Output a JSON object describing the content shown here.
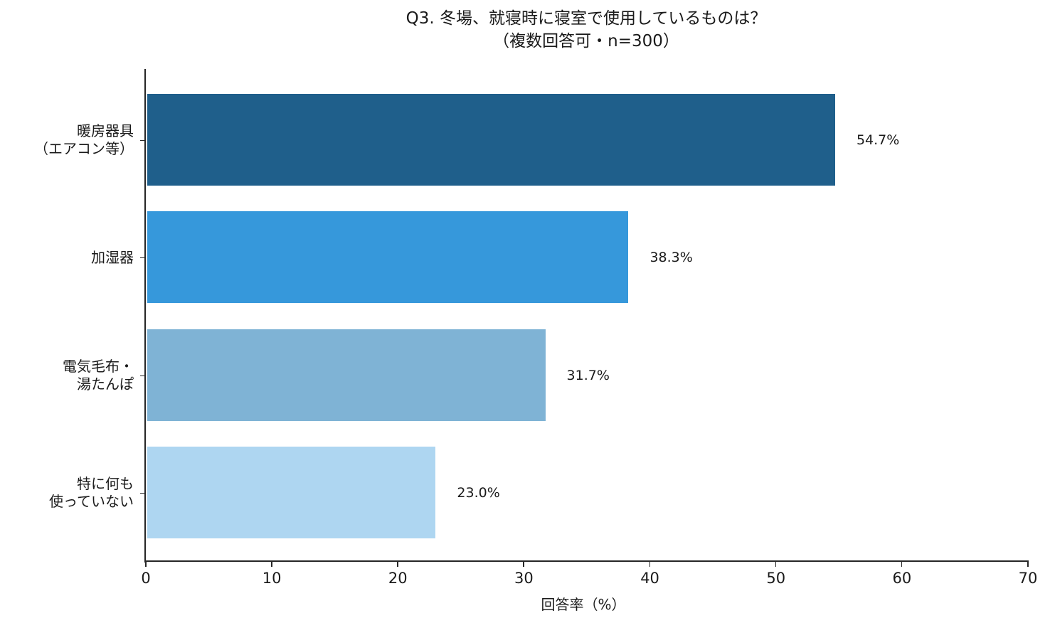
{
  "chart_data": {
    "type": "bar",
    "orientation": "horizontal",
    "title": "Q3. 冬場、就寝時に寝室で使用しているものは？\n（複数回答可・n=300）",
    "title_lines": [
      "Q3. 冬場、就寝時に寝室で使用しているものは？",
      "（複数回答可・n=300）"
    ],
    "categories": [
      "暖房器具\n（エアコン等）",
      "加湿器",
      "電気毛布・\n湯たんぽ",
      "特に何も\n使っていない"
    ],
    "category_lines": [
      [
        "暖房器具",
        "（エアコン等）"
      ],
      [
        "加湿器"
      ],
      [
        "電気毛布・",
        "湯たんぽ"
      ],
      [
        "特に何も",
        "使っていない"
      ]
    ],
    "values": [
      54.7,
      38.3,
      31.7,
      23.0
    ],
    "value_labels": [
      "54.7%",
      "38.3%",
      "31.7%",
      "23.0%"
    ],
    "colors": [
      "#1f5f8b",
      "#3698db",
      "#7fb3d5",
      "#aed6f1"
    ],
    "xlabel": "回答率（%）",
    "ylabel": "",
    "xlim": [
      0,
      70
    ],
    "xticks": [
      0,
      10,
      20,
      30,
      40,
      50,
      60,
      70
    ],
    "xtick_labels": [
      "0",
      "10",
      "20",
      "30",
      "40",
      "50",
      "60",
      "70"
    ],
    "grid": false,
    "legend": null
  }
}
